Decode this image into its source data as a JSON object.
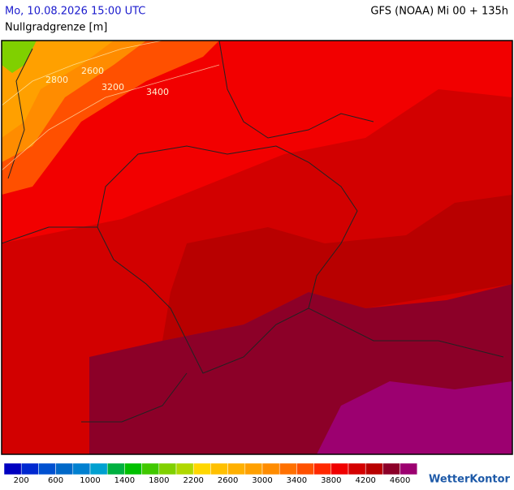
{
  "header": {
    "datetime": "Mo, 10.08.2026 15:00 UTC",
    "model": "GFS (NOAA) Mi 00 + 135h",
    "parameter": "Nullgradgrenze [m]"
  },
  "map": {
    "contour_labels": [
      "2800",
      "2600",
      "3200",
      "3400"
    ]
  },
  "legend": {
    "colors": [
      "#0000c0",
      "#0028d0",
      "#0050d0",
      "#0068c8",
      "#0080d0",
      "#00a0d0",
      "#00b040",
      "#00c000",
      "#40c800",
      "#80d000",
      "#b0d800",
      "#ffd700",
      "#ffc000",
      "#ffb000",
      "#ffa000",
      "#ff8c00",
      "#ff7000",
      "#ff5000",
      "#ff2800",
      "#f00000",
      "#d40000",
      "#b80000",
      "#8c0028",
      "#9c0070"
    ],
    "labels": [
      200,
      600,
      1000,
      1400,
      1800,
      2200,
      2600,
      3000,
      3400,
      3800,
      4200,
      4600
    ]
  },
  "branding": {
    "logo": "WetterKontor"
  }
}
